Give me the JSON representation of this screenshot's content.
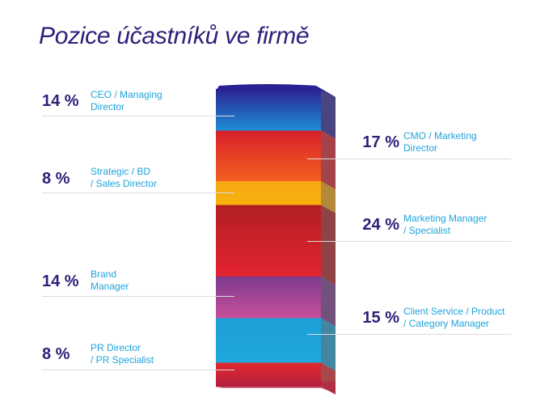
{
  "title": "Pozice účastníků ve firmě",
  "chart_data": {
    "type": "bar",
    "title": "Pozice účastníků ve firmě",
    "series": [
      {
        "value": 14,
        "label": "14 %",
        "name": "CEO / Managing Director",
        "side": "left",
        "colors": [
          "#2a2293",
          "#1f8fd9"
        ]
      },
      {
        "value": 17,
        "label": "17 %",
        "name": "CMO / Marketing Director",
        "side": "right",
        "colors": [
          "#d9202b",
          "#f2601e"
        ]
      },
      {
        "value": 8,
        "label": "8 %",
        "name": "Strategic / BD / Sales Director",
        "side": "left",
        "colors": [
          "#f6a712",
          "#f7b30d"
        ]
      },
      {
        "value": 24,
        "label": "24 %",
        "name": "Marketing Manager / Specialist",
        "side": "right",
        "colors": [
          "#b01f23",
          "#e4242f"
        ]
      },
      {
        "value": 14,
        "label": "14 %",
        "name": "Brand Manager",
        "side": "left",
        "colors": [
          "#7c3a8d",
          "#c9509c"
        ]
      },
      {
        "value": 15,
        "label": "15 %",
        "name": "Client Service / Product / Category Manager",
        "side": "right",
        "colors": [
          "#1d9fd6",
          "#1fa8dd"
        ]
      },
      {
        "value": 8,
        "label": "8 %",
        "name": "PR Director / PR Specialist",
        "side": "left",
        "colors": [
          "#e0282e",
          "#b51f3f"
        ]
      }
    ]
  },
  "items": [
    {
      "pct": "14 %",
      "line1": "CEO / Managing",
      "line2": "Director"
    },
    {
      "pct": "17 %",
      "line1": "CMO / Marketing",
      "line2": "Director"
    },
    {
      "pct": "8 %",
      "line1": "Strategic / BD",
      "line2": "/ Sales Director"
    },
    {
      "pct": "24 %",
      "line1": "Marketing Manager",
      "line2": "/ Specialist"
    },
    {
      "pct": "14 %",
      "line1": "Brand",
      "line2": "Manager"
    },
    {
      "pct": "15 %",
      "line1": "Client Service / Product",
      "line2": "/ Category Manager"
    },
    {
      "pct": "8 %",
      "line1": "PR Director",
      "line2": "/ PR Specialist"
    }
  ],
  "colors": {
    "title": "#2d1f7a",
    "percent": "#2d1f7a",
    "label": "#1fa4db",
    "rule": "#dcdcdc"
  }
}
